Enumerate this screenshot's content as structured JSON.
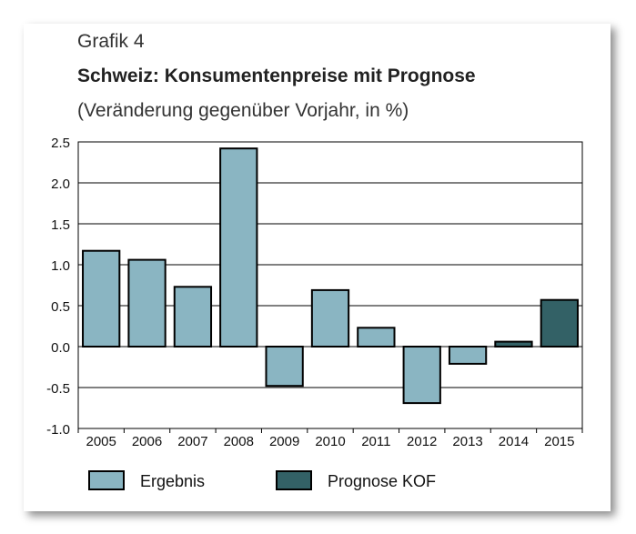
{
  "header": {
    "figure_label": "Grafik 4",
    "title": "Schweiz: Konsumentenpreise mit Prognose",
    "subtitle": "(Veränderung gegenüber Vorjahr, in %)"
  },
  "colors": {
    "ergebnis": "#8ab5c2",
    "prognose": "#336166",
    "grid": "#000000"
  },
  "chart_data": {
    "type": "bar",
    "title": "Schweiz: Konsumentenpreise mit Prognose",
    "subtitle": "(Veränderung gegenüber Vorjahr, in %)",
    "xlabel": "",
    "ylabel": "",
    "categories": [
      "2005",
      "2006",
      "2007",
      "2008",
      "2009",
      "2010",
      "2011",
      "2012",
      "2013",
      "2014",
      "2015"
    ],
    "series": [
      {
        "name": "Ergebnis",
        "values": [
          1.17,
          1.06,
          0.73,
          2.42,
          -0.48,
          0.69,
          0.23,
          -0.69,
          -0.21,
          null,
          null
        ]
      },
      {
        "name": "Prognose KOF",
        "values": [
          null,
          null,
          null,
          null,
          null,
          null,
          null,
          null,
          null,
          0.06,
          0.57
        ]
      }
    ],
    "ylim": [
      -1.0,
      2.5
    ],
    "yticks": [
      "2.5",
      "2.0",
      "1.5",
      "1.0",
      "0.5",
      "0.0",
      "-0.5",
      "-1.0"
    ],
    "ytick_values": [
      2.5,
      2.0,
      1.5,
      1.0,
      0.5,
      0.0,
      -0.5,
      -1.0
    ],
    "grid": true,
    "legend_position": "bottom"
  },
  "legend": {
    "ergebnis_label": "Ergebnis",
    "prognose_label": "Prognose KOF"
  }
}
